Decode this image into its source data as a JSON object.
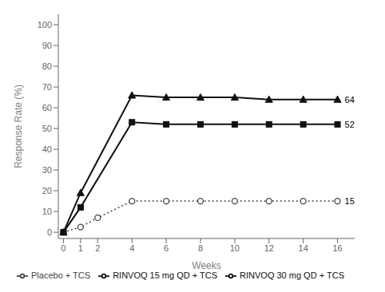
{
  "chart_data": {
    "type": "line",
    "xlabel": "Weeks",
    "ylabel": "Response Rate (%)",
    "xlim": [
      -0.3,
      17.0
    ],
    "ylim": [
      -3,
      105
    ],
    "xticks": [
      0,
      1,
      2,
      4,
      6,
      8,
      10,
      12,
      14,
      16
    ],
    "yticks": [
      0,
      10,
      20,
      30,
      40,
      50,
      60,
      70,
      80,
      90,
      100
    ],
    "grid": false,
    "legend": "bottom",
    "series": [
      {
        "name": "Placebo + TCS",
        "x": [
          0,
          1,
          2,
          4,
          6,
          8,
          10,
          12,
          14,
          16
        ],
        "values": [
          0,
          2.5,
          7,
          15,
          15,
          15,
          15,
          15,
          15,
          15
        ],
        "color": "#444444",
        "marker": "circle",
        "line_style": "dotted"
      },
      {
        "name": "RINVOQ 15 mg QD + TCS",
        "x": [
          0,
          1,
          4,
          6,
          8,
          10,
          12,
          14,
          16
        ],
        "values": [
          0,
          12,
          53,
          52,
          52,
          52,
          52,
          52,
          52
        ],
        "color": "#111111",
        "marker": "square",
        "line_style": "solid"
      },
      {
        "name": "RINVOQ 30 mg QD + TCS",
        "x": [
          0,
          1,
          4,
          6,
          8,
          10,
          12,
          14,
          16
        ],
        "values": [
          0,
          19,
          66,
          65,
          65,
          65,
          64,
          64,
          64
        ],
        "color": "#111111",
        "marker": "triangle",
        "line_style": "solid"
      }
    ],
    "annotations": [
      {
        "x": 16,
        "y": 15,
        "text": "15"
      },
      {
        "x": 16,
        "y": 52,
        "text": "52"
      },
      {
        "x": 16,
        "y": 64,
        "text": "64"
      }
    ]
  }
}
